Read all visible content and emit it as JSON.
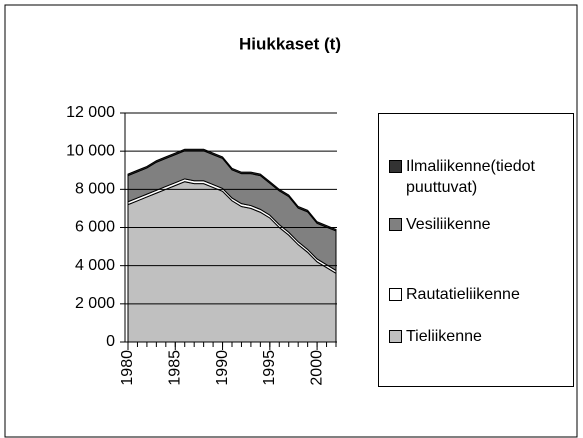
{
  "chart_data": {
    "type": "stacked_area",
    "title": "Hiukkaset (t)",
    "x": [
      1980,
      1981,
      1982,
      1983,
      1984,
      1985,
      1986,
      1987,
      1988,
      1989,
      1990,
      1991,
      1992,
      1993,
      1994,
      1995,
      1996,
      1997,
      1998,
      1999,
      2000,
      2001,
      2002
    ],
    "series": [
      {
        "name": "Tieliikenne",
        "color": "#c0c0c0",
        "values": [
          7200,
          7400,
          7600,
          7800,
          8000,
          8200,
          8400,
          8300,
          8300,
          8100,
          7900,
          7400,
          7100,
          7000,
          6800,
          6500,
          6000,
          5600,
          5100,
          4700,
          4200,
          3900,
          3600
        ]
      },
      {
        "name": "Rautatieliikenne",
        "color": "#ffffff",
        "values": [
          150,
          150,
          150,
          150,
          150,
          150,
          150,
          150,
          150,
          150,
          150,
          150,
          150,
          150,
          150,
          150,
          150,
          150,
          150,
          150,
          150,
          150,
          150
        ]
      },
      {
        "name": "Vesiliikenne",
        "color": "#808080",
        "values": [
          1370,
          1370,
          1370,
          1470,
          1470,
          1470,
          1470,
          1570,
          1570,
          1570,
          1570,
          1470,
          1570,
          1670,
          1770,
          1670,
          1770,
          1870,
          1770,
          1970,
          1870,
          1970,
          2070
        ]
      },
      {
        "name": "Ilmaliikenne(tiedot puuttuvat)",
        "color": "#333333",
        "values": [
          80,
          80,
          80,
          80,
          80,
          80,
          80,
          80,
          80,
          80,
          80,
          80,
          80,
          80,
          80,
          80,
          80,
          80,
          80,
          80,
          80,
          80,
          80
        ]
      }
    ],
    "xlim": [
      1980,
      2002
    ],
    "xticks": [
      1980,
      1985,
      1990,
      1995,
      2000
    ],
    "ylim": [
      0,
      12000
    ],
    "yticks": [
      0,
      {
        "value": 2000,
        "label": "2 000"
      },
      {
        "value": 4000,
        "label": "4 000"
      },
      {
        "value": 6000,
        "label": "6 000"
      },
      {
        "value": 8000,
        "label": "8 000"
      },
      {
        "value": 10000,
        "label": "10 000"
      },
      {
        "value": 12000,
        "label": "12 000"
      }
    ],
    "grid": true
  }
}
